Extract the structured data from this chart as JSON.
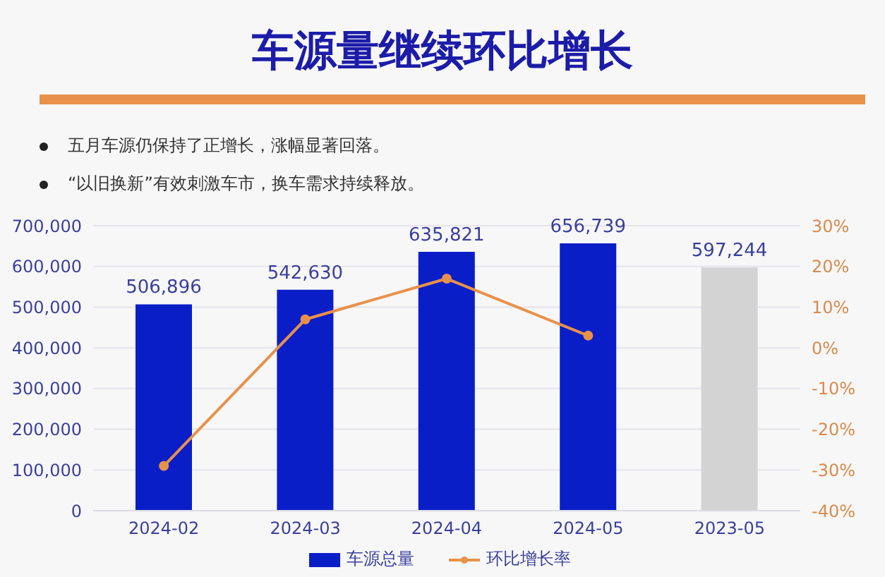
{
  "chart_data": {
    "type": "bar",
    "title": "车源量继续环比增长",
    "annotations": [
      "五月车源仍保持了正增长，涨幅显著回落。",
      "“以旧换新”有效刺激车市，换车需求持续释放。"
    ],
    "categories": [
      "2024-02",
      "2024-03",
      "2024-04",
      "2024-05",
      "2023-05"
    ],
    "series": [
      {
        "name": "车源总量",
        "color": "#0a1ec8",
        "colors": [
          "#0a1ec8",
          "#0a1ec8",
          "#0a1ec8",
          "#0a1ec8",
          "#d3d3d3"
        ],
        "values": [
          506896,
          542630,
          635821,
          656739,
          597244
        ],
        "value_labels": [
          "506,896",
          "542,630",
          "635,821",
          "656,739",
          "597,244"
        ]
      },
      {
        "name": "环比增长率",
        "type": "line",
        "axis": "y2",
        "color": "#e8914a",
        "values": [
          -29,
          7,
          17,
          3,
          null
        ]
      }
    ],
    "ylim": [
      0,
      700000
    ],
    "yticks": [
      0,
      {
        "value": 100000,
        "label": "100,000"
      },
      {
        "value": 200000,
        "label": "200,000"
      },
      {
        "value": 300000,
        "label": "300,000"
      },
      {
        "value": 400000,
        "label": "400,000"
      },
      {
        "value": 500000,
        "label": "500,000"
      },
      {
        "value": 600000,
        "label": "600,000"
      },
      {
        "value": 700000,
        "label": "700,000"
      }
    ],
    "y2lim": [
      -40,
      30
    ],
    "y2ticks": [
      {
        "value": -40,
        "label": "-40%"
      },
      {
        "value": -30,
        "label": "-30%"
      },
      {
        "value": -20,
        "label": "-20%"
      },
      {
        "value": -10,
        "label": "-10%"
      },
      {
        "value": 0,
        "label": "0%"
      },
      {
        "value": 10,
        "label": "10%"
      },
      {
        "value": 20,
        "label": "20%"
      },
      {
        "value": 30,
        "label": "30%"
      }
    ],
    "grid": "y",
    "legend": "bottom",
    "marker": "circle",
    "line_style": "solid"
  }
}
